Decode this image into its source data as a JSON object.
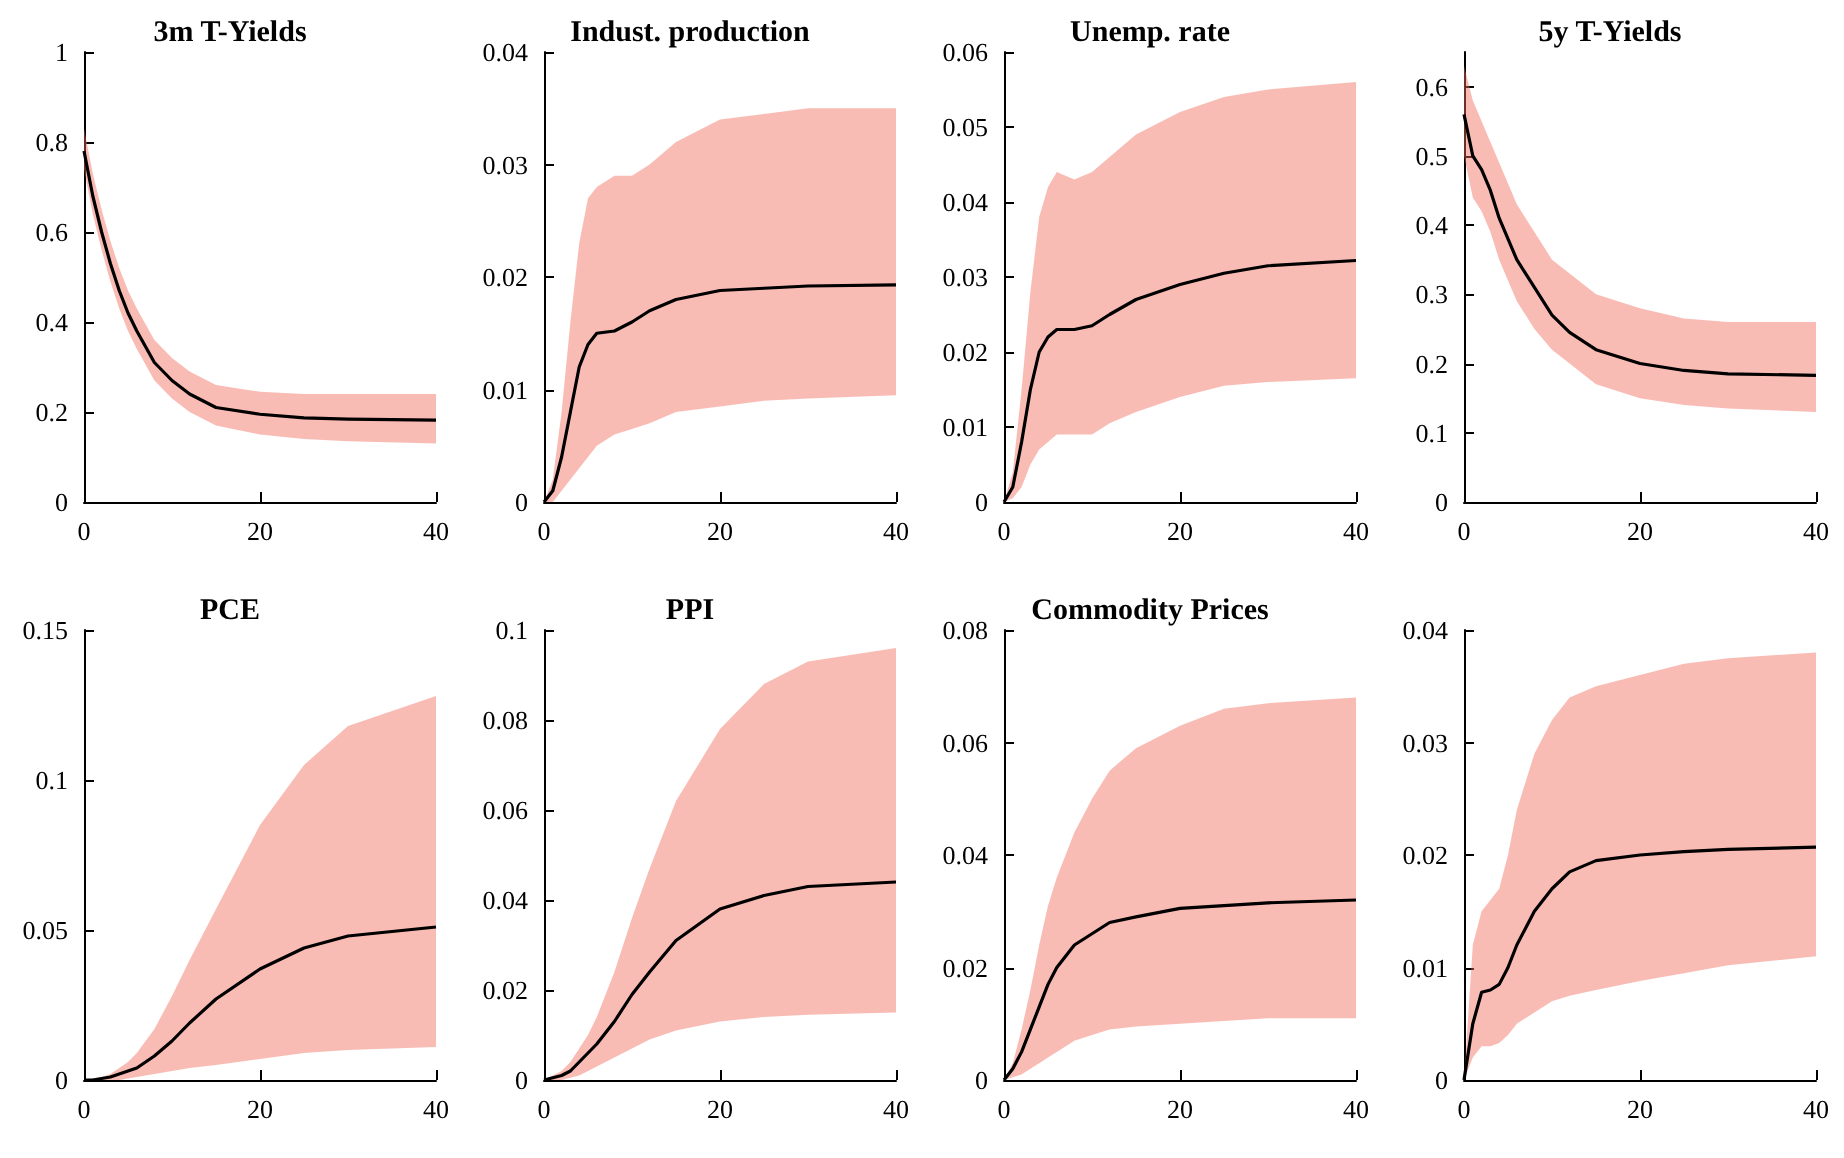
{
  "chart_data": [
    {
      "type": "line",
      "title": "3m T-Yields",
      "x": [
        0,
        1,
        2,
        3,
        4,
        5,
        6,
        8,
        10,
        12,
        15,
        20,
        25,
        30,
        40
      ],
      "xlim": [
        0,
        40
      ],
      "xticks": [
        0,
        20,
        40
      ],
      "ylim": [
        0,
        1
      ],
      "yticks": [
        0,
        0.2,
        0.4,
        0.6,
        0.8,
        1
      ],
      "marker": "none",
      "series": [
        {
          "color": "#000000",
          "values": [
            0.78,
            0.68,
            0.6,
            0.53,
            0.47,
            0.42,
            0.38,
            0.31,
            0.27,
            0.24,
            0.21,
            0.195,
            0.187,
            0.184,
            0.182
          ],
          "lower": [
            0.74,
            0.64,
            0.56,
            0.49,
            0.43,
            0.38,
            0.34,
            0.27,
            0.23,
            0.2,
            0.17,
            0.15,
            0.14,
            0.135,
            0.13
          ],
          "upper": [
            0.83,
            0.73,
            0.65,
            0.58,
            0.52,
            0.47,
            0.43,
            0.36,
            0.32,
            0.29,
            0.26,
            0.245,
            0.24,
            0.24,
            0.24
          ]
        }
      ]
    },
    {
      "type": "line",
      "title": "Indust. production",
      "x": [
        0,
        1,
        2,
        3,
        4,
        5,
        6,
        8,
        10,
        12,
        15,
        20,
        25,
        30,
        40
      ],
      "xlim": [
        0,
        40
      ],
      "xticks": [
        0,
        20,
        40
      ],
      "ylim": [
        0,
        0.04
      ],
      "yticks": [
        0,
        0.01,
        0.02,
        0.03,
        0.04
      ],
      "marker": "none",
      "series": [
        {
          "color": "#000000",
          "values": [
            0,
            0.001,
            0.004,
            0.008,
            0.012,
            0.014,
            0.015,
            0.0152,
            0.016,
            0.017,
            0.018,
            0.0188,
            0.019,
            0.0192,
            0.0193
          ],
          "lower": [
            0,
            0,
            0.001,
            0.002,
            0.003,
            0.004,
            0.005,
            0.006,
            0.0065,
            0.007,
            0.008,
            0.0085,
            0.009,
            0.0092,
            0.0095
          ],
          "upper": [
            0,
            0.002,
            0.008,
            0.016,
            0.023,
            0.027,
            0.028,
            0.029,
            0.029,
            0.03,
            0.032,
            0.034,
            0.0345,
            0.035,
            0.035
          ]
        }
      ]
    },
    {
      "type": "line",
      "title": "Unemp. rate",
      "x": [
        0,
        1,
        2,
        3,
        4,
        5,
        6,
        8,
        10,
        12,
        15,
        20,
        25,
        30,
        40
      ],
      "xlim": [
        0,
        40
      ],
      "xticks": [
        0,
        20,
        40
      ],
      "ylim": [
        0,
        0.06
      ],
      "yticks": [
        0,
        0.01,
        0.02,
        0.03,
        0.04,
        0.05,
        0.06
      ],
      "marker": "none",
      "series": [
        {
          "color": "#000000",
          "values": [
            0,
            0.002,
            0.008,
            0.015,
            0.02,
            0.022,
            0.023,
            0.023,
            0.0235,
            0.025,
            0.027,
            0.029,
            0.0305,
            0.0315,
            0.0322
          ],
          "lower": [
            0,
            0.0005,
            0.002,
            0.005,
            0.007,
            0.008,
            0.009,
            0.009,
            0.009,
            0.0105,
            0.012,
            0.014,
            0.0155,
            0.016,
            0.0165
          ],
          "upper": [
            0,
            0.004,
            0.015,
            0.028,
            0.038,
            0.042,
            0.044,
            0.043,
            0.044,
            0.046,
            0.049,
            0.052,
            0.054,
            0.055,
            0.056
          ]
        }
      ]
    },
    {
      "type": "line",
      "title": "5y T-Yields",
      "x": [
        0,
        1,
        2,
        3,
        4,
        5,
        6,
        8,
        10,
        12,
        15,
        20,
        25,
        30,
        40
      ],
      "xlim": [
        0,
        40
      ],
      "xticks": [
        0,
        20,
        40
      ],
      "ylim": [
        0,
        0.65
      ],
      "yticks": [
        0,
        0.1,
        0.2,
        0.3,
        0.4,
        0.5,
        0.6
      ],
      "marker": "none",
      "series": [
        {
          "color": "#000000",
          "values": [
            0.56,
            0.5,
            0.48,
            0.45,
            0.41,
            0.38,
            0.35,
            0.31,
            0.27,
            0.245,
            0.22,
            0.2,
            0.19,
            0.185,
            0.183
          ],
          "lower": [
            0.5,
            0.44,
            0.42,
            0.39,
            0.35,
            0.32,
            0.29,
            0.25,
            0.22,
            0.2,
            0.17,
            0.15,
            0.14,
            0.135,
            0.13
          ],
          "upper": [
            0.63,
            0.58,
            0.55,
            0.52,
            0.49,
            0.46,
            0.43,
            0.39,
            0.35,
            0.33,
            0.3,
            0.28,
            0.265,
            0.26,
            0.26
          ]
        }
      ]
    },
    {
      "type": "line",
      "title": "PCE",
      "x": [
        0,
        1,
        2,
        3,
        4,
        5,
        6,
        8,
        10,
        12,
        15,
        20,
        25,
        30,
        40
      ],
      "xlim": [
        0,
        40
      ],
      "xticks": [
        0,
        20,
        40
      ],
      "ylim": [
        0,
        0.15
      ],
      "yticks": [
        0,
        0.05,
        0.1,
        0.15
      ],
      "marker": "none",
      "series": [
        {
          "color": "#000000",
          "values": [
            0,
            0,
            0.0005,
            0.001,
            0.002,
            0.003,
            0.004,
            0.008,
            0.013,
            0.019,
            0.027,
            0.037,
            0.044,
            0.048,
            0.051
          ],
          "lower": [
            0,
            0,
            0,
            0,
            0,
            0.0005,
            0.001,
            0.002,
            0.003,
            0.004,
            0.005,
            0.007,
            0.009,
            0.01,
            0.011
          ],
          "upper": [
            0,
            0.0005,
            0.001,
            0.002,
            0.004,
            0.006,
            0.009,
            0.017,
            0.028,
            0.04,
            0.057,
            0.085,
            0.105,
            0.118,
            0.128
          ]
        }
      ]
    },
    {
      "type": "line",
      "title": "PPI",
      "x": [
        0,
        1,
        2,
        3,
        4,
        5,
        6,
        8,
        10,
        12,
        15,
        20,
        25,
        30,
        40
      ],
      "xlim": [
        0,
        40
      ],
      "xticks": [
        0,
        20,
        40
      ],
      "ylim": [
        0,
        0.1
      ],
      "yticks": [
        0,
        0.02,
        0.04,
        0.06,
        0.08,
        0.1
      ],
      "marker": "none",
      "series": [
        {
          "color": "#000000",
          "values": [
            0,
            0.0005,
            0.001,
            0.002,
            0.004,
            0.006,
            0.008,
            0.013,
            0.019,
            0.024,
            0.031,
            0.038,
            0.041,
            0.043,
            0.044
          ],
          "lower": [
            0,
            0,
            0,
            0.0005,
            0.001,
            0.002,
            0.003,
            0.005,
            0.007,
            0.009,
            0.011,
            0.013,
            0.014,
            0.0145,
            0.015
          ],
          "upper": [
            0,
            0.001,
            0.002,
            0.004,
            0.007,
            0.01,
            0.014,
            0.024,
            0.036,
            0.047,
            0.062,
            0.078,
            0.088,
            0.093,
            0.096
          ]
        }
      ]
    },
    {
      "type": "line",
      "title": "Commodity Prices",
      "x": [
        0,
        1,
        2,
        3,
        4,
        5,
        6,
        8,
        10,
        12,
        15,
        20,
        25,
        30,
        40
      ],
      "xlim": [
        0,
        40
      ],
      "xticks": [
        0,
        20,
        40
      ],
      "ylim": [
        0,
        0.08
      ],
      "yticks": [
        0,
        0.02,
        0.04,
        0.06,
        0.08
      ],
      "marker": "none",
      "series": [
        {
          "color": "#000000",
          "values": [
            0,
            0.002,
            0.005,
            0.009,
            0.013,
            0.017,
            0.02,
            0.024,
            0.026,
            0.028,
            0.029,
            0.0305,
            0.031,
            0.0315,
            0.032
          ],
          "lower": [
            0,
            0.0005,
            0.001,
            0.002,
            0.003,
            0.004,
            0.005,
            0.007,
            0.008,
            0.009,
            0.0095,
            0.01,
            0.0105,
            0.011,
            0.011
          ],
          "upper": [
            0,
            0.003,
            0.009,
            0.016,
            0.024,
            0.031,
            0.036,
            0.044,
            0.05,
            0.055,
            0.059,
            0.063,
            0.066,
            0.067,
            0.068
          ]
        }
      ]
    },
    {
      "type": "line",
      "x": [
        0,
        1,
        2,
        3,
        4,
        5,
        6,
        8,
        10,
        12,
        15,
        20,
        25,
        30,
        40
      ],
      "xlim": [
        0,
        40
      ],
      "xticks": [
        0,
        20,
        40
      ],
      "ylim": [
        0,
        0.04
      ],
      "yticks": [
        0,
        0.01,
        0.02,
        0.03,
        0.04
      ],
      "marker": "none",
      "series": [
        {
          "color": "#000000",
          "values": [
            0,
            0.005,
            0.0078,
            0.008,
            0.0085,
            0.01,
            0.012,
            0.015,
            0.017,
            0.0185,
            0.0195,
            0.02,
            0.0203,
            0.0205,
            0.0207
          ],
          "lower": [
            0,
            0.002,
            0.003,
            0.003,
            0.0033,
            0.004,
            0.005,
            0.006,
            0.007,
            0.0075,
            0.008,
            0.0088,
            0.0095,
            0.0102,
            0.011
          ],
          "upper": [
            0,
            0.012,
            0.015,
            0.016,
            0.017,
            0.02,
            0.024,
            0.029,
            0.032,
            0.034,
            0.035,
            0.036,
            0.037,
            0.0375,
            0.038
          ]
        }
      ]
    }
  ]
}
